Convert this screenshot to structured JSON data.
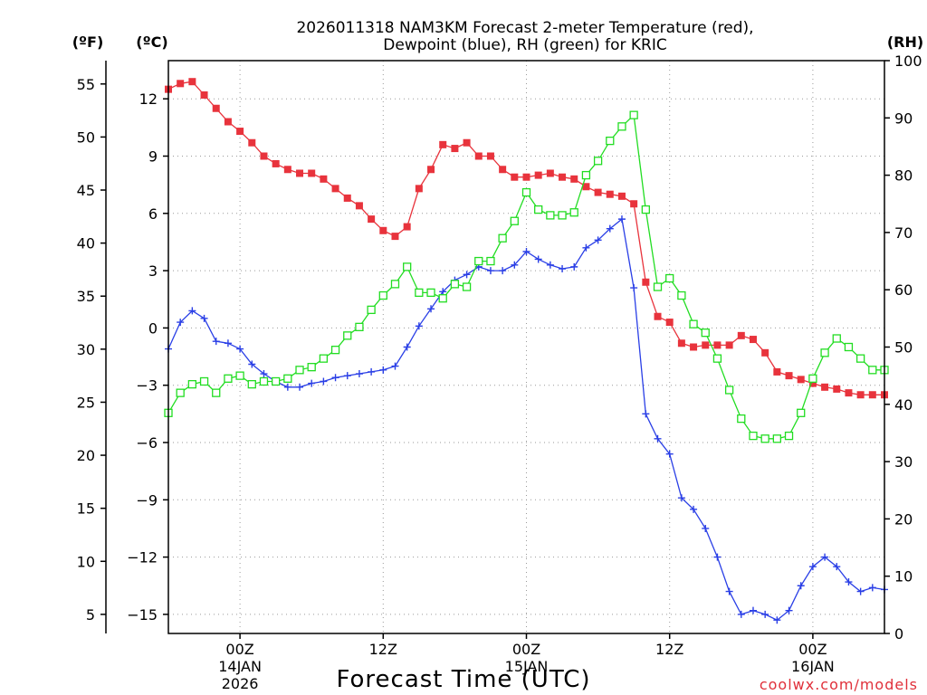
{
  "chart_data": {
    "type": "line",
    "title_line1": "2026011318 NAM3KM Forecast 2-meter Temperature (red),",
    "title_line2": "Dewpoint (blue), RH (green) for KRIC",
    "xlabel": "Forecast Time (UTC)",
    "credit": "coolwx.com/models",
    "unit_f": "(ºF)",
    "unit_c": "(ºC)",
    "unit_rh": "(RH)",
    "xlim": [
      -6,
      54
    ],
    "ylim_c": [
      -16,
      14
    ],
    "ylim_rh": [
      0,
      100
    ],
    "f_ticks": [
      "5",
      "10",
      "15",
      "20",
      "25",
      "30",
      "35",
      "40",
      "45",
      "50",
      "55"
    ],
    "c_ticks": [
      "−15",
      "−12",
      "−9",
      "−6",
      "−3",
      "0",
      "3",
      "6",
      "9",
      "12"
    ],
    "rh_ticks": [
      "0",
      "10",
      "20",
      "30",
      "40",
      "50",
      "60",
      "70",
      "80",
      "90",
      "100"
    ],
    "x_ticks": [
      {
        "hour": 0,
        "label": "00Z",
        "sub1": "14JAN",
        "sub2": "2026"
      },
      {
        "hour": 12,
        "label": "12Z",
        "sub1": "",
        "sub2": ""
      },
      {
        "hour": 24,
        "label": "00Z",
        "sub1": "15JAN",
        "sub2": ""
      },
      {
        "hour": 36,
        "label": "12Z",
        "sub1": "",
        "sub2": ""
      },
      {
        "hour": 48,
        "label": "00Z",
        "sub1": "16JAN",
        "sub2": ""
      }
    ],
    "series": [
      {
        "name": "Temperature",
        "axis": "C",
        "color": "#e8333c",
        "marker": "filled-square",
        "x": [
          -6,
          -5,
          -4,
          -3,
          -2,
          -1,
          0,
          1,
          2,
          3,
          4,
          5,
          6,
          7,
          8,
          9,
          10,
          11,
          12,
          13,
          14,
          15,
          16,
          17,
          18,
          19,
          20,
          21,
          22,
          23,
          24,
          25,
          26,
          27,
          28,
          29,
          30,
          31,
          32,
          33,
          34,
          35,
          36,
          37,
          38,
          39,
          40,
          41,
          42,
          43,
          44,
          45,
          46,
          47,
          48,
          49,
          50,
          51,
          52,
          53,
          54
        ],
        "values": [
          12.5,
          12.8,
          12.9,
          12.2,
          11.5,
          10.8,
          10.3,
          9.7,
          9.0,
          8.6,
          8.3,
          8.1,
          8.1,
          7.8,
          7.3,
          6.8,
          6.4,
          5.7,
          5.1,
          4.8,
          5.3,
          7.3,
          8.3,
          9.6,
          9.4,
          9.7,
          9.0,
          9.0,
          8.3,
          7.9,
          7.9,
          8.0,
          8.1,
          7.9,
          7.8,
          7.4,
          7.1,
          7.0,
          6.9,
          6.5,
          2.4,
          0.6,
          0.3,
          -0.8,
          -1.0,
          -0.9,
          -0.9,
          -0.9,
          -0.4,
          -0.6,
          -1.3,
          -2.3,
          -2.5,
          -2.7,
          -2.9,
          -3.1,
          -3.2,
          -3.4,
          -3.5,
          -3.5,
          -3.5
        ]
      },
      {
        "name": "Dewpoint",
        "axis": "C",
        "color": "#2a3fe6",
        "marker": "plus",
        "x": [
          -6,
          -5,
          -4,
          -3,
          -2,
          -1,
          0,
          1,
          2,
          3,
          4,
          5,
          6,
          7,
          8,
          9,
          10,
          11,
          12,
          13,
          14,
          15,
          16,
          17,
          18,
          19,
          20,
          21,
          22,
          23,
          24,
          25,
          26,
          27,
          28,
          29,
          30,
          31,
          32,
          33,
          34,
          35,
          36,
          37,
          38,
          39,
          40,
          41,
          42,
          43,
          44,
          45,
          46,
          47,
          48,
          49,
          50,
          51,
          52,
          53,
          54
        ],
        "values": [
          -1.1,
          0.3,
          0.9,
          0.5,
          -0.7,
          -0.8,
          -1.1,
          -1.9,
          -2.4,
          -2.8,
          -3.1,
          -3.1,
          -2.9,
          -2.8,
          -2.6,
          -2.5,
          -2.4,
          -2.3,
          -2.2,
          -2.0,
          -1.0,
          0.1,
          1.0,
          1.9,
          2.5,
          2.8,
          3.2,
          3.0,
          3.0,
          3.3,
          4.0,
          3.6,
          3.3,
          3.1,
          3.2,
          4.2,
          4.6,
          5.2,
          5.7,
          2.1,
          -4.5,
          -5.8,
          -6.6,
          -8.9,
          -9.5,
          -10.5,
          -12.0,
          -13.8,
          -15.0,
          -14.8,
          -15.0,
          -15.3,
          -14.8,
          -13.5,
          -12.5,
          -12.0,
          -12.5,
          -13.3,
          -13.8,
          -13.6,
          -13.7
        ]
      },
      {
        "name": "RH",
        "axis": "RH",
        "color": "#22dd22",
        "marker": "open-square",
        "x": [
          -6,
          -5,
          -4,
          -3,
          -2,
          -1,
          0,
          1,
          2,
          3,
          4,
          5,
          6,
          7,
          8,
          9,
          10,
          11,
          12,
          13,
          14,
          15,
          16,
          17,
          18,
          19,
          20,
          21,
          22,
          23,
          24,
          25,
          26,
          27,
          28,
          29,
          30,
          31,
          32,
          33,
          34,
          35,
          36,
          37,
          38,
          39,
          40,
          41,
          42,
          43,
          44,
          45,
          46,
          47,
          48,
          49,
          50,
          51,
          52,
          53,
          54
        ],
        "values": [
          38.5,
          42.0,
          43.5,
          44.0,
          42.0,
          44.5,
          45.0,
          43.5,
          44.0,
          44.0,
          44.5,
          46.0,
          46.5,
          48.0,
          49.5,
          52.0,
          53.5,
          56.5,
          59.0,
          61.0,
          64.0,
          59.5,
          59.5,
          58.5,
          61.0,
          60.5,
          65.0,
          65.0,
          69.0,
          72.0,
          77.0,
          74.0,
          73.0,
          73.0,
          73.5,
          80.0,
          82.5,
          86.0,
          88.5,
          90.5,
          74.0,
          60.5,
          62.0,
          59.0,
          54.0,
          52.5,
          48.0,
          42.5,
          37.5,
          34.5,
          34.0,
          34.0,
          34.5,
          38.5,
          44.5,
          49.0,
          51.5,
          50.0,
          48.0,
          46.0,
          46.0
        ]
      }
    ]
  }
}
